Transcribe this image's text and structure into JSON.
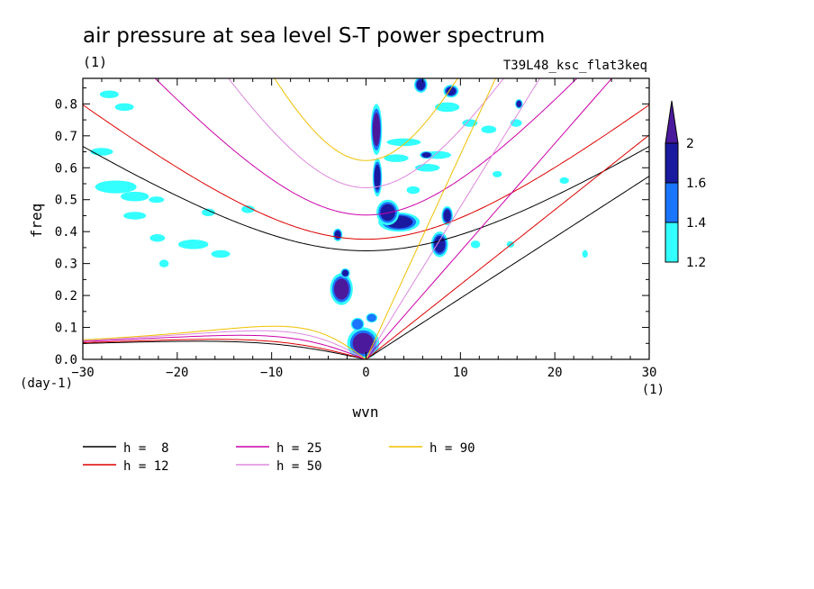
{
  "chart_data": {
    "type": "heatmap",
    "title": "air pressure at sea level S-T power spectrum",
    "units": "(1)",
    "subtitle": "T39L48_ksc_flat3keq",
    "xlabel": "wvn",
    "ylabel": "freq",
    "x_unit": "(1)",
    "y_unit": "(day-1)",
    "xlim": [
      -30,
      30
    ],
    "ylim": [
      0.0,
      0.88
    ],
    "x_ticks": [
      -30,
      -20,
      -10,
      0,
      10,
      20,
      30
    ],
    "y_ticks": [
      0.0,
      0.1,
      0.2,
      0.3,
      0.4,
      0.5,
      0.6,
      0.7,
      0.8
    ],
    "colorbar": {
      "levels": [
        1.2,
        1.4,
        1.6,
        2
      ],
      "colors": [
        "#33ffff",
        "#1a75ff",
        "#1a1aa0",
        "#4b1a9c"
      ],
      "tick_labels": [
        "1.2",
        "1.4",
        "1.6",
        "2"
      ]
    },
    "power_regions": [
      {
        "cx": 1.1,
        "cy": 0.72,
        "rx": 0.6,
        "ry": 0.08,
        "level": 2
      },
      {
        "cx": 1.2,
        "cy": 0.57,
        "rx": 0.5,
        "ry": 0.06,
        "level": 1.8
      },
      {
        "cx": 3.5,
        "cy": 0.43,
        "rx": 2.2,
        "ry": 0.03,
        "level": 1.8
      },
      {
        "cx": 2.3,
        "cy": 0.46,
        "rx": 1.2,
        "ry": 0.04,
        "level": 1.6
      },
      {
        "cx": 7.8,
        "cy": 0.36,
        "rx": 0.9,
        "ry": 0.04,
        "level": 1.7
      },
      {
        "cx": 8.6,
        "cy": 0.45,
        "rx": 0.6,
        "ry": 0.03,
        "level": 1.6
      },
      {
        "cx": 9.0,
        "cy": 0.84,
        "rx": 0.8,
        "ry": 0.02,
        "level": 1.6
      },
      {
        "cx": 5.8,
        "cy": 0.86,
        "rx": 0.7,
        "ry": 0.025,
        "level": 1.7
      },
      {
        "cx": -2.6,
        "cy": 0.22,
        "rx": 1.2,
        "ry": 0.05,
        "level": 2
      },
      {
        "cx": -3.0,
        "cy": 0.39,
        "rx": 0.5,
        "ry": 0.02,
        "level": 1.7
      },
      {
        "cx": -2.2,
        "cy": 0.27,
        "rx": 0.5,
        "ry": 0.015,
        "level": 1.6
      },
      {
        "cx": -0.3,
        "cy": 0.05,
        "rx": 1.7,
        "ry": 0.05,
        "level": 2
      },
      {
        "cx": -0.9,
        "cy": 0.11,
        "rx": 0.7,
        "ry": 0.02,
        "level": 1.4
      },
      {
        "cx": -26.5,
        "cy": 0.54,
        "rx": 2.2,
        "ry": 0.02,
        "level": 1.3
      },
      {
        "cx": -24.5,
        "cy": 0.51,
        "rx": 1.5,
        "ry": 0.015,
        "level": 1.3
      },
      {
        "cx": -28.0,
        "cy": 0.65,
        "rx": 1.2,
        "ry": 0.012,
        "level": 1.3
      },
      {
        "cx": -25.6,
        "cy": 0.79,
        "rx": 1.0,
        "ry": 0.012,
        "level": 1.3
      },
      {
        "cx": -27.2,
        "cy": 0.83,
        "rx": 1.0,
        "ry": 0.012,
        "level": 1.3
      },
      {
        "cx": -18.3,
        "cy": 0.36,
        "rx": 1.6,
        "ry": 0.015,
        "level": 1.3
      },
      {
        "cx": -15.4,
        "cy": 0.33,
        "rx": 1.0,
        "ry": 0.012,
        "level": 1.3
      },
      {
        "cx": -21.4,
        "cy": 0.3,
        "rx": 0.5,
        "ry": 0.012,
        "level": 1.3
      },
      {
        "cx": -24.5,
        "cy": 0.45,
        "rx": 1.2,
        "ry": 0.012,
        "level": 1.3
      },
      {
        "cx": -22.2,
        "cy": 0.5,
        "rx": 0.8,
        "ry": 0.01,
        "level": 1.3
      },
      {
        "cx": -16.7,
        "cy": 0.46,
        "rx": 0.7,
        "ry": 0.012,
        "level": 1.3
      },
      {
        "cx": -12.5,
        "cy": 0.47,
        "rx": 0.7,
        "ry": 0.012,
        "level": 1.3
      },
      {
        "cx": -22.1,
        "cy": 0.38,
        "rx": 0.8,
        "ry": 0.012,
        "level": 1.3
      },
      {
        "cx": 3.2,
        "cy": 0.63,
        "rx": 1.3,
        "ry": 0.012,
        "level": 1.3
      },
      {
        "cx": 4.0,
        "cy": 0.68,
        "rx": 1.8,
        "ry": 0.012,
        "level": 1.3
      },
      {
        "cx": 6.5,
        "cy": 0.6,
        "rx": 1.3,
        "ry": 0.012,
        "level": 1.3
      },
      {
        "cx": 7.6,
        "cy": 0.64,
        "rx": 1.4,
        "ry": 0.012,
        "level": 1.3
      },
      {
        "cx": 5.0,
        "cy": 0.53,
        "rx": 0.7,
        "ry": 0.012,
        "level": 1.3
      },
      {
        "cx": 8.6,
        "cy": 0.79,
        "rx": 1.3,
        "ry": 0.015,
        "level": 1.3
      },
      {
        "cx": 11.0,
        "cy": 0.74,
        "rx": 0.8,
        "ry": 0.012,
        "level": 1.3
      },
      {
        "cx": 13.0,
        "cy": 0.72,
        "rx": 0.8,
        "ry": 0.012,
        "level": 1.3
      },
      {
        "cx": 15.9,
        "cy": 0.74,
        "rx": 0.6,
        "ry": 0.012,
        "level": 1.3
      },
      {
        "cx": 16.2,
        "cy": 0.8,
        "rx": 0.4,
        "ry": 0.015,
        "level": 1.6
      },
      {
        "cx": 13.9,
        "cy": 0.58,
        "rx": 0.5,
        "ry": 0.01,
        "level": 1.3
      },
      {
        "cx": 21.0,
        "cy": 0.56,
        "rx": 0.5,
        "ry": 0.01,
        "level": 1.3
      },
      {
        "cx": 23.2,
        "cy": 0.33,
        "rx": 0.3,
        "ry": 0.012,
        "level": 1.3
      },
      {
        "cx": 11.6,
        "cy": 0.36,
        "rx": 0.5,
        "ry": 0.012,
        "level": 1.3
      },
      {
        "cx": 15.3,
        "cy": 0.36,
        "rx": 0.4,
        "ry": 0.01,
        "level": 1.3
      },
      {
        "cx": 0.6,
        "cy": 0.13,
        "rx": 0.6,
        "ry": 0.015,
        "level": 1.4
      },
      {
        "cx": 6.4,
        "cy": 0.64,
        "rx": 0.7,
        "ry": 0.012,
        "level": 1.6
      }
    ],
    "series": [
      {
        "name": "h =  8",
        "h": 8,
        "color": "#000000"
      },
      {
        "name": "h = 12",
        "h": 12,
        "color": "#dd0000"
      },
      {
        "name": "h = 25",
        "h": 25,
        "color": "#cc00aa"
      },
      {
        "name": "h = 50",
        "h": 50,
        "color": "#dd88dd"
      },
      {
        "name": "h = 90",
        "h": 90,
        "color": "#f0c000"
      }
    ]
  }
}
